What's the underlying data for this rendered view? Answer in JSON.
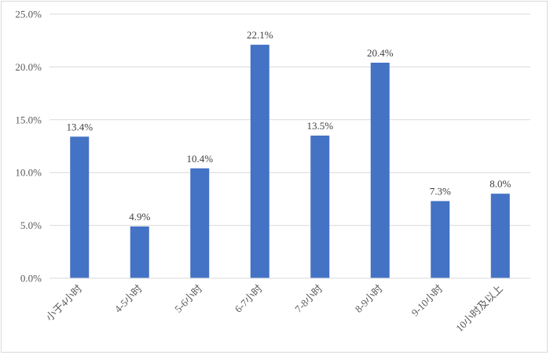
{
  "chart_data": {
    "type": "bar",
    "title": "",
    "xlabel": "",
    "ylabel": "",
    "categories": [
      "小于4小时",
      "4-5小时",
      "5-6小时",
      "6-7小时",
      "7-8小时",
      "8-9小时",
      "9-10小时",
      "10小时及以上"
    ],
    "values": [
      13.4,
      4.9,
      10.4,
      22.1,
      13.5,
      20.4,
      7.3,
      8.0
    ],
    "data_labels": [
      "13.4%",
      "4.9%",
      "10.4%",
      "22.1%",
      "13.5%",
      "20.4%",
      "7.3%",
      "8.0%"
    ],
    "ylim": [
      0,
      25
    ],
    "yticks": [
      0,
      5,
      10,
      15,
      20,
      25
    ],
    "ytick_labels": [
      "0.0%",
      "5.0%",
      "10.0%",
      "15.0%",
      "20.0%",
      "25.0%"
    ],
    "grid": true,
    "legend": "none",
    "bar_color": "#4472c4",
    "grid_color": "#d9d9d9"
  }
}
